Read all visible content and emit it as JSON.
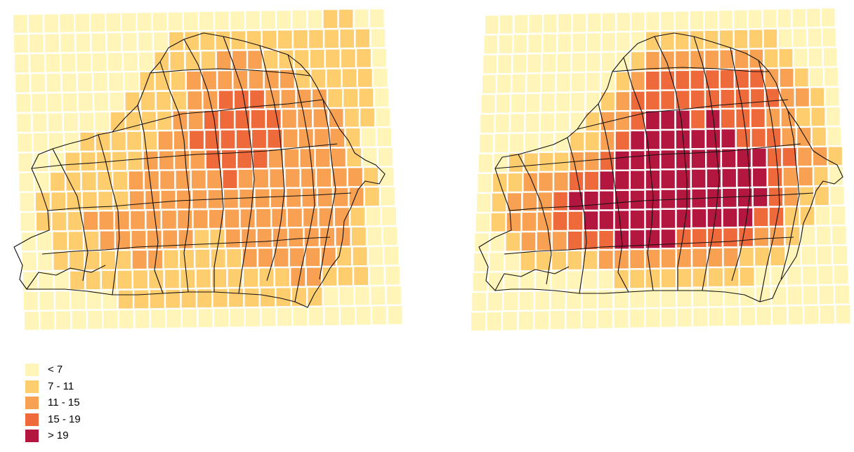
{
  "legend": {
    "classes": [
      {
        "label": "< 7",
        "color": "#fff5b8"
      },
      {
        "label": "7 - 11",
        "color": "#fdcd6e"
      },
      {
        "label": "11 - 15",
        "color": "#f9a152"
      },
      {
        "label": "15 - 19",
        "color": "#ef6a3a"
      },
      {
        "label": "> 19",
        "color": "#b3163e"
      }
    ]
  },
  "maps": [
    {
      "rows": [
        "000000000000000000001100",
        "000000000011111111111110",
        "000000000111122211111110",
        "000000001112222222111110",
        "000000011112233322221110",
        "000000111122333332222110",
        "000011111223333332222100",
        "000111112222333322222100",
        "001111122222232222222210",
        "011111122222222222222210",
        "011122222222222222222100",
        "001112222221122222222100",
        "001111122111112222221100",
        "000111111111111112211100",
        "000000111111111111100000",
        "000000000000000000000000"
      ]
    },
    {
      "rows": [
        "000000000000000000000000",
        "000000000001111111110000",
        "000000000012222222211000",
        "000000000123333333322100",
        "000000001233333333332210",
        "000000012234443433322110",
        "000000112344444443332210",
        "001111223444444444433221",
        "011222334444444444432210",
        "012223444444444444432110",
        "012223344444444444331100",
        "001222333444433333221000",
        "000111112222222221110000",
        "000000000111111111000000",
        "000000000000000000000000",
        "000000000000000000000000"
      ]
    }
  ]
}
